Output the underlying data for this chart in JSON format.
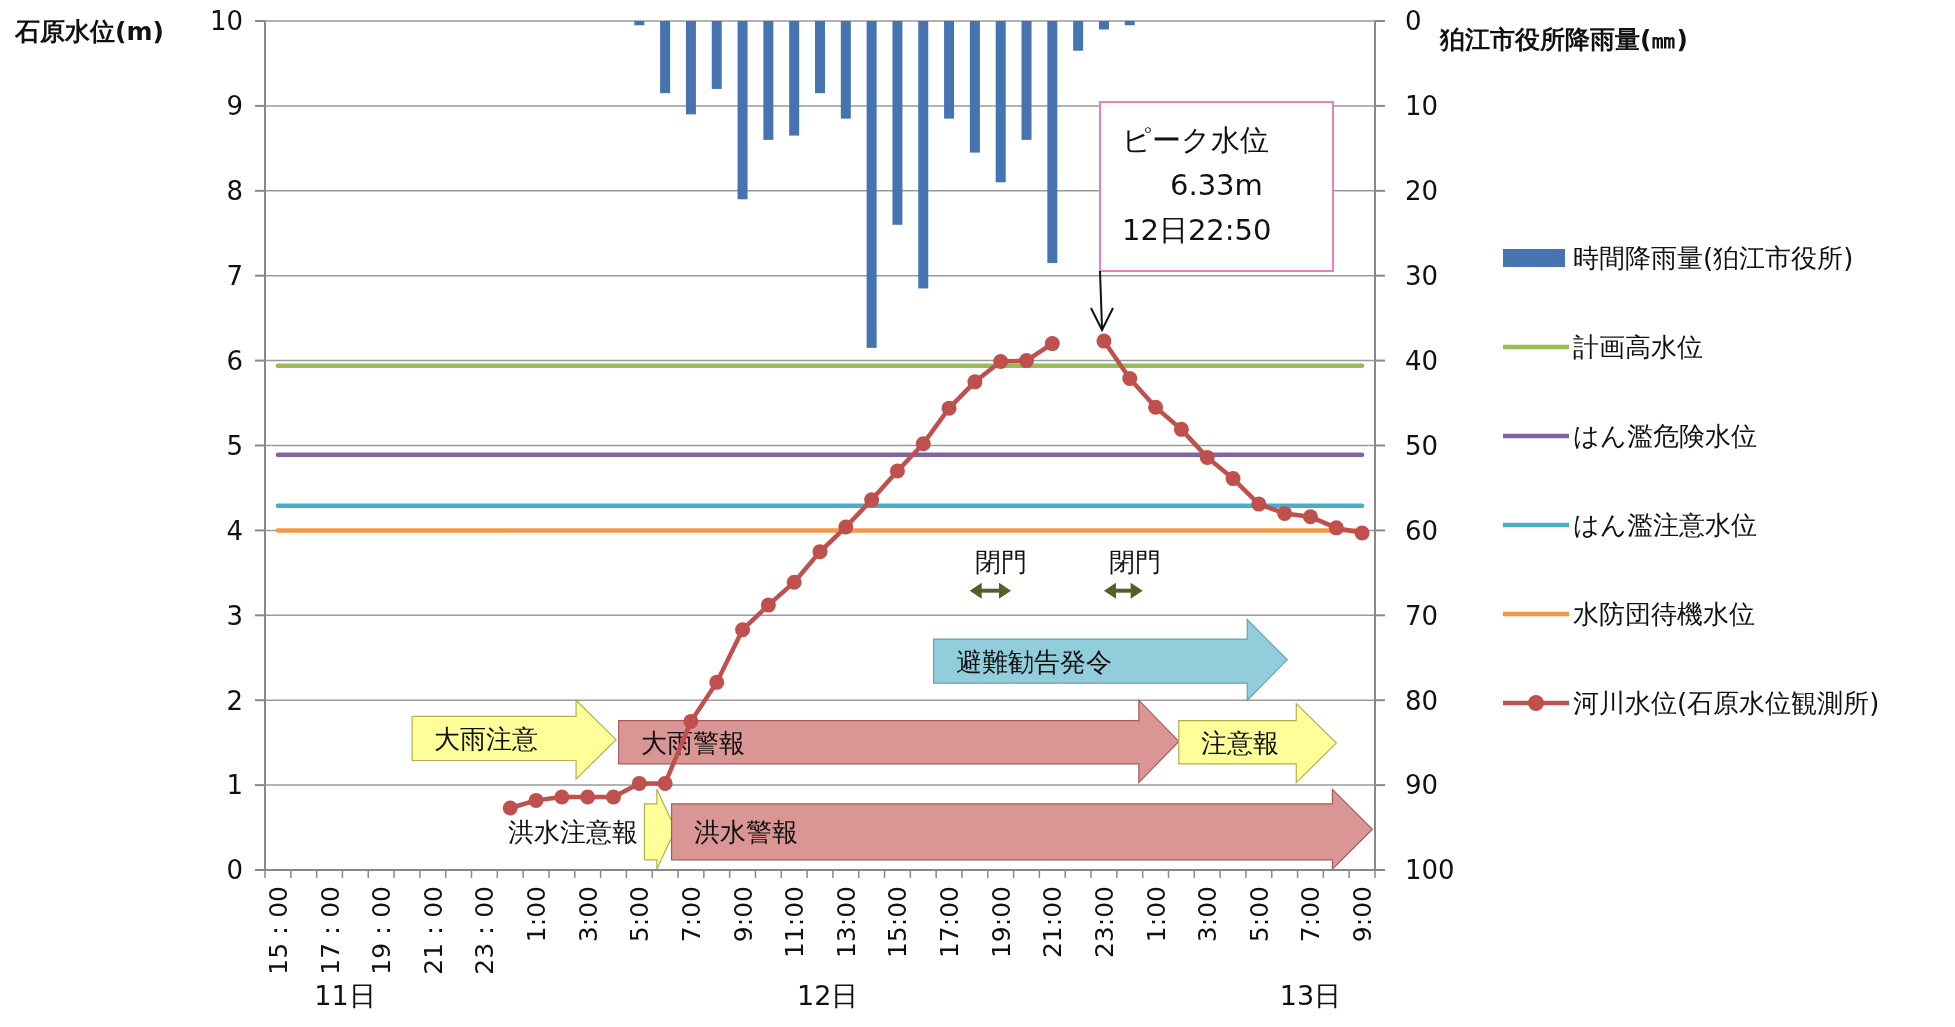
{
  "chart_data": {
    "type": "line",
    "ylabel": "石原水位(m)",
    "y2label": "狛江市役所降雨量(㎜)",
    "categories": [
      "15：00",
      null,
      "17：00",
      null,
      "19：00",
      null,
      "21：00",
      null,
      "23：00",
      null,
      "1:00",
      null,
      "3:00",
      null,
      "5:00",
      null,
      "7:00",
      null,
      "9:00",
      null,
      "11:00",
      null,
      "13:00",
      null,
      "15:00",
      null,
      "17:00",
      null,
      "19:00",
      null,
      "21:00",
      null,
      "23:00",
      null,
      "1:00",
      null,
      "3:00",
      null,
      "5:00",
      null,
      "7:00",
      null,
      "9:00"
    ],
    "ylim": [
      0,
      10
    ],
    "yticks": [
      0,
      1,
      2,
      3,
      4,
      5,
      6,
      7,
      8,
      9,
      10
    ],
    "y2lim": [
      100,
      0
    ],
    "y2ticks": [
      0,
      10,
      20,
      30,
      40,
      50,
      60,
      70,
      80,
      90,
      100
    ],
    "grid": "y",
    "legend": "right",
    "series": [
      {
        "name": "時間降雨量(狛江市役所)",
        "type": "bar",
        "axis": "y2",
        "color": "#4674b0",
        "values": [
          null,
          null,
          null,
          null,
          null,
          null,
          null,
          null,
          null,
          null,
          null,
          null,
          null,
          null,
          0.5,
          8.5,
          11,
          8,
          21,
          14,
          13.5,
          8.5,
          11.5,
          38.5,
          24,
          31.5,
          11.5,
          15.5,
          19,
          14,
          28.5,
          3.5,
          1,
          0.5,
          null,
          null,
          null,
          null,
          null,
          null,
          null,
          null,
          null
        ]
      },
      {
        "name": "計画高水位",
        "color": "#9bbb59",
        "marker": "none",
        "values": [
          5.94,
          5.94,
          5.94,
          5.94,
          5.94,
          5.94,
          5.94,
          5.94,
          5.94,
          5.94,
          5.94,
          5.94,
          5.94,
          5.94,
          5.94,
          5.94,
          5.94,
          5.94,
          5.94,
          5.94,
          5.94,
          5.94,
          5.94,
          5.94,
          5.94,
          5.94,
          5.94,
          5.94,
          5.94,
          5.94,
          5.94,
          5.94,
          5.94,
          5.94,
          5.94,
          5.94,
          5.94,
          5.94,
          5.94,
          5.94,
          5.94,
          5.94,
          5.94
        ]
      },
      {
        "name": "はん濫危険水位",
        "color": "#8064a2",
        "marker": "none",
        "values": [
          4.89,
          4.89,
          4.89,
          4.89,
          4.89,
          4.89,
          4.89,
          4.89,
          4.89,
          4.89,
          4.89,
          4.89,
          4.89,
          4.89,
          4.89,
          4.89,
          4.89,
          4.89,
          4.89,
          4.89,
          4.89,
          4.89,
          4.89,
          4.89,
          4.89,
          4.89,
          4.89,
          4.89,
          4.89,
          4.89,
          4.89,
          4.89,
          4.89,
          4.89,
          4.89,
          4.89,
          4.89,
          4.89,
          4.89,
          4.89,
          4.89,
          4.89,
          4.89
        ]
      },
      {
        "name": "はん濫注意水位",
        "color": "#4bacc6",
        "marker": "none",
        "values": [
          4.29,
          4.29,
          4.29,
          4.29,
          4.29,
          4.29,
          4.29,
          4.29,
          4.29,
          4.29,
          4.29,
          4.29,
          4.29,
          4.29,
          4.29,
          4.29,
          4.29,
          4.29,
          4.29,
          4.29,
          4.29,
          4.29,
          4.29,
          4.29,
          4.29,
          4.29,
          4.29,
          4.29,
          4.29,
          4.29,
          4.29,
          4.29,
          4.29,
          4.29,
          4.29,
          4.29,
          4.29,
          4.29,
          4.29,
          4.29,
          4.29,
          4.29,
          4.29
        ]
      },
      {
        "name": "水防団待機水位",
        "color": "#f79646",
        "marker": "none",
        "values": [
          4,
          4,
          4,
          4,
          4,
          4,
          4,
          4,
          4,
          4,
          4,
          4,
          4,
          4,
          4,
          4,
          4,
          4,
          4,
          4,
          4,
          4,
          4,
          4,
          4,
          4,
          4,
          4,
          4,
          4,
          4,
          4,
          4,
          4,
          4,
          4,
          4,
          4,
          4,
          4,
          4,
          4,
          4
        ]
      },
      {
        "name": "河川水位(石原水位観測所)",
        "color": "#c0504d",
        "marker": "circle",
        "values": [
          null,
          null,
          null,
          null,
          null,
          null,
          null,
          null,
          null,
          0.73,
          0.82,
          0.86,
          0.86,
          0.86,
          1.02,
          1.02,
          1.75,
          2.21,
          2.83,
          3.12,
          3.39,
          3.75,
          4.04,
          4.36,
          4.7,
          5.02,
          5.44,
          5.75,
          5.99,
          6.0,
          6.2,
          null,
          6.23,
          5.79,
          5.45,
          5.19,
          4.86,
          4.61,
          4.31,
          4.2,
          4.16,
          4.03,
          3.97
        ]
      }
    ],
    "annotations": [
      "ピーク水位\n6.33m\n12日22:50",
      "大雨注意",
      "大雨警報",
      "注意報",
      "洪水注意報",
      "洪水警報",
      "避難勧告発令",
      "閉門",
      "閉門",
      "11日",
      "12日",
      "13日"
    ]
  }
}
